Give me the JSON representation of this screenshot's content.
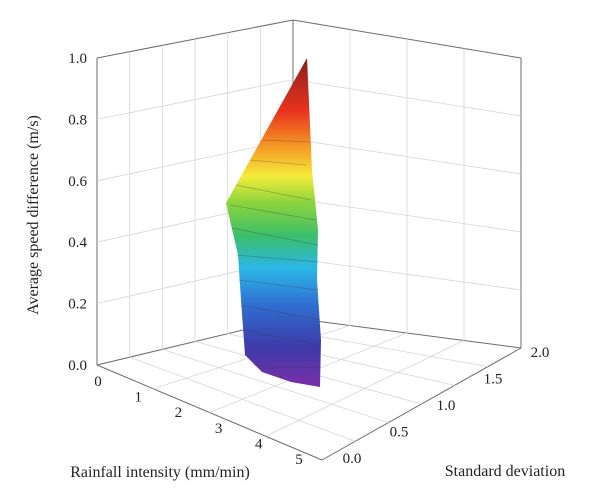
{
  "chart_data": {
    "type": "surface3d",
    "title": "",
    "xlabel": "Rainfall intensity (mm/min)",
    "ylabel": "Standard deviation",
    "zlabel": "Average speed difference (m/s)",
    "x_ticks": [
      "0",
      "1",
      "2",
      "3",
      "4",
      "5"
    ],
    "y_ticks": [
      "0.0",
      "0.5",
      "1.0",
      "1.5",
      "2.0"
    ],
    "z_ticks": [
      "0.0",
      "0.2",
      "0.4",
      "0.6",
      "0.8",
      "1.0"
    ],
    "xlim": [
      0,
      5.5
    ],
    "ylim": [
      0,
      2
    ],
    "zlim": [
      0,
      1
    ],
    "grid": true,
    "colormap": [
      "#7b2fa8",
      "#3d3aa8",
      "#2f6fd0",
      "#2bb6e8",
      "#3cbf6a",
      "#8cd43c",
      "#f3ec3a",
      "#f6a326",
      "#e8321e",
      "#8b1e1e"
    ],
    "surface_points": [
      {
        "x": 0.1,
        "y": 0.1,
        "z": 0.86
      },
      {
        "x": 0.4,
        "y": 0.3,
        "z": 0.82
      },
      {
        "x": 1.0,
        "y": 0.5,
        "z": 0.72
      },
      {
        "x": 1.8,
        "y": 0.7,
        "z": 0.62
      },
      {
        "x": 2.5,
        "y": 0.8,
        "z": 0.52
      },
      {
        "x": 3.2,
        "y": 0.9,
        "z": 0.42
      },
      {
        "x": 4.0,
        "y": 1.0,
        "z": 0.3
      },
      {
        "x": 4.6,
        "y": 1.05,
        "z": 0.2
      },
      {
        "x": 5.0,
        "y": 1.1,
        "z": 0.12
      },
      {
        "x": 5.3,
        "y": 1.15,
        "z": 0.04
      }
    ]
  }
}
